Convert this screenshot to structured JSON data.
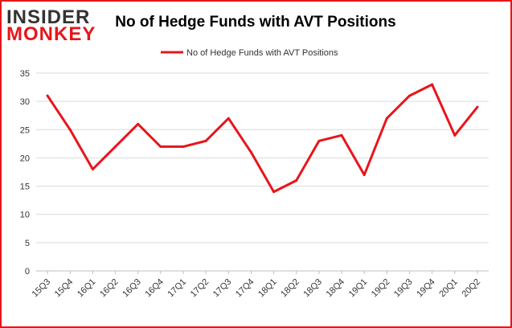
{
  "logo": {
    "line1": "INSIDER",
    "line2": "MONKEY"
  },
  "chart_data": {
    "type": "line",
    "title": "No of Hedge Funds with AVT Positions",
    "xlabel": "",
    "ylabel": "",
    "categories": [
      "15Q3",
      "15Q4",
      "16Q1",
      "16Q2",
      "16Q3",
      "16Q4",
      "17Q1",
      "17Q2",
      "17Q3",
      "17Q4",
      "18Q1",
      "18Q2",
      "18Q3",
      "18Q4",
      "19Q1",
      "19Q2",
      "19Q3",
      "19Q4",
      "20Q1",
      "20Q2"
    ],
    "series": [
      {
        "name": "No of Hedge Funds with AVT Positions",
        "color": "#e8151b",
        "values": [
          31,
          25,
          18,
          22,
          26,
          22,
          22,
          23,
          27,
          21,
          14,
          16,
          23,
          24,
          17,
          27,
          31,
          33,
          24,
          29
        ]
      }
    ],
    "ylim": [
      0,
      35
    ],
    "yticks": [
      0,
      5,
      10,
      15,
      20,
      25,
      30,
      35
    ],
    "grid": true,
    "legend": "top-center"
  },
  "colors": {
    "border": "#e8151b",
    "grid": "#d9d9d9",
    "axis": "#bfbfbf",
    "logo_red": "#e8151b",
    "logo_dark": "#333333"
  }
}
